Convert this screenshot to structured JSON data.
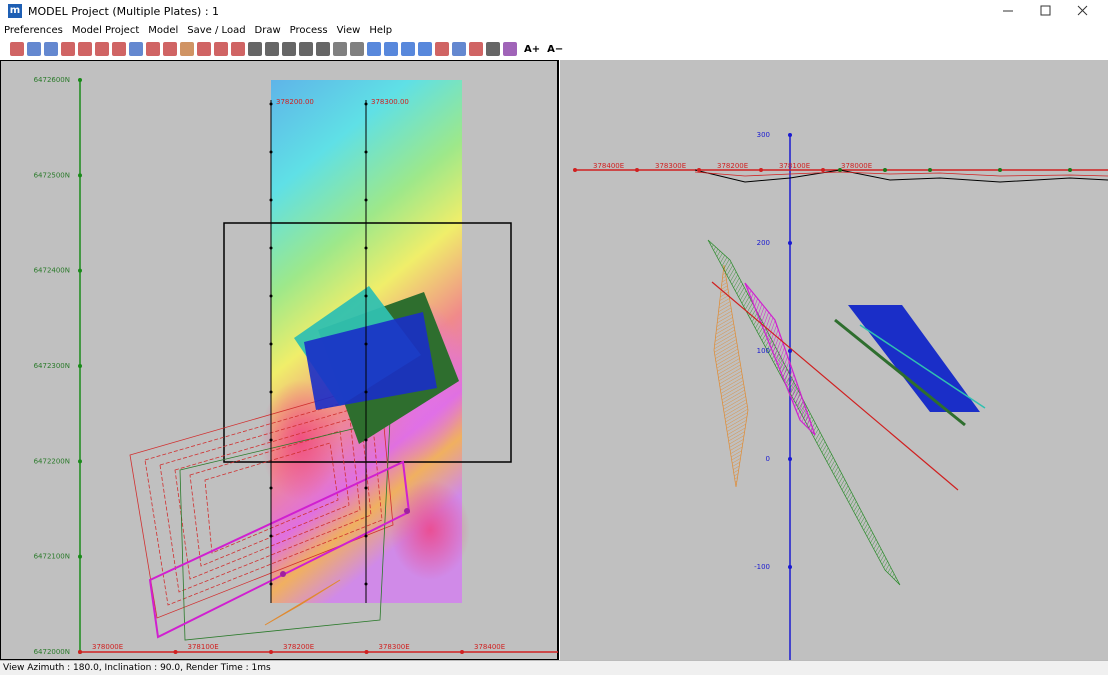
{
  "window": {
    "title": "MODEL Project (Multiple Plates) : 1",
    "app_icon": "m"
  },
  "menu": [
    "Preferences",
    "Model Project",
    "Model",
    "Save / Load",
    "Draw",
    "Process",
    "View",
    "Help"
  ],
  "toolbar": {
    "font_larger": "A+",
    "font_smaller": "A−"
  },
  "plan_view": {
    "northing_labels": [
      "6472600N",
      "6472500N",
      "6472400N",
      "6472300N",
      "6472200N",
      "6472100N",
      "6472000N"
    ],
    "easting_labels": [
      "378000E",
      "378100E",
      "378200E",
      "378300E",
      "378400E"
    ],
    "line_labels": [
      "378200.00",
      "378300.00"
    ]
  },
  "section_view": {
    "elevation_labels": [
      "300",
      "200",
      "100",
      "0",
      "-100"
    ],
    "easting_labels": [
      "378400E",
      "378300E",
      "378200E",
      "378100E",
      "378000E"
    ]
  },
  "status_bar": "View Azimuth : 180.0, Inclination : 90.0, Render Time : 1ms"
}
